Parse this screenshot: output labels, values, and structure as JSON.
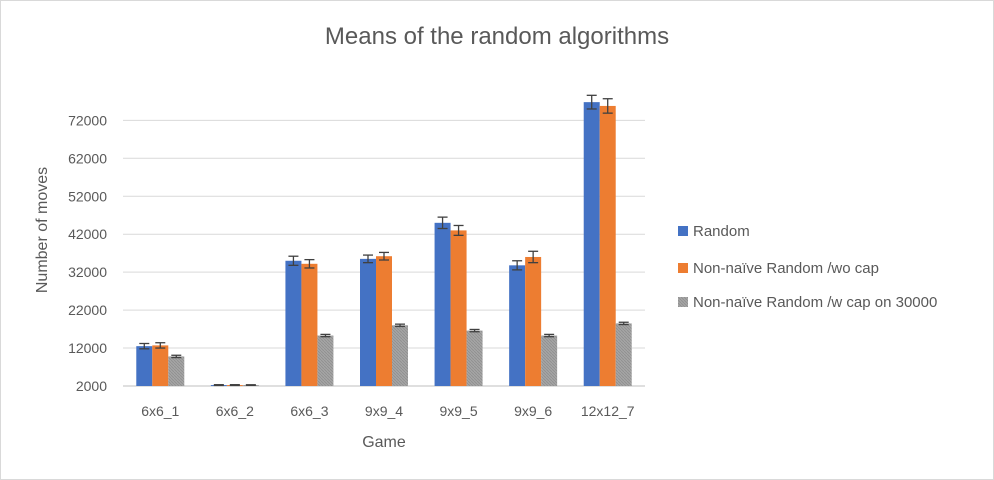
{
  "chart_data": {
    "type": "bar",
    "title": "Means of the random algorithms",
    "xlabel": "Game",
    "ylabel": "Number of moves",
    "categories": [
      "6x6_1",
      "6x6_2",
      "6x6_3",
      "9x9_4",
      "9x9_5",
      "9x9_6",
      "12x12_7"
    ],
    "ylim": [
      2000,
      80000
    ],
    "yticks": [
      "2000",
      "12000",
      "22000",
      "32000",
      "42000",
      "52000",
      "62000",
      "72000"
    ],
    "series": [
      {
        "name": "Random",
        "color": "#4472C4",
        "values": [
          12500,
          2250,
          35000,
          35500,
          45000,
          33800,
          76800
        ],
        "errors": [
          700,
          100,
          1200,
          1000,
          1500,
          1200,
          1800
        ]
      },
      {
        "name": "Non-naïve Random /wo cap",
        "color": "#ED7D31",
        "values": [
          12700,
          2250,
          34200,
          36200,
          43000,
          36000,
          75800
        ],
        "errors": [
          700,
          100,
          1100,
          1000,
          1300,
          1500,
          1900
        ]
      },
      {
        "name": "Non-naïve Random /w cap on 30000",
        "color": "#A5A5A5",
        "pattern": "hatched",
        "values": [
          9800,
          2250,
          15300,
          18000,
          16600,
          15300,
          18500
        ],
        "errors": [
          300,
          80,
          300,
          300,
          300,
          300,
          300
        ]
      }
    ],
    "grid": true,
    "legend": "right"
  }
}
